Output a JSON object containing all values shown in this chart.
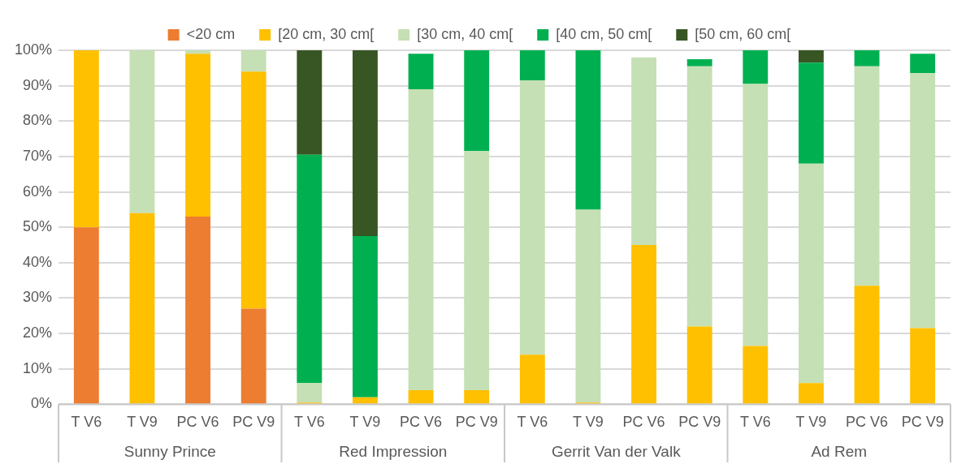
{
  "chart_data": {
    "type": "bar",
    "stacked": true,
    "categories": [
      "T V6",
      "T V9",
      "PC V6",
      "PC V9",
      "T V6",
      "T V9",
      "PC V6",
      "PC V9",
      "T V6",
      "T V9",
      "PC V6",
      "PC V9",
      "T V6",
      "T V9",
      "PC V6",
      "PC V9"
    ],
    "series": [
      {
        "name": "<20 cm",
        "color": "#ed7d31",
        "values": [
          50,
          0,
          53,
          27,
          0,
          0,
          0,
          0,
          0,
          0,
          0,
          0,
          0,
          0,
          0,
          0
        ]
      },
      {
        "name": "[20 cm, 30 cm[",
        "color": "#ffc000",
        "values": [
          50,
          54,
          46,
          67,
          0.5,
          2,
          4,
          4,
          14,
          0.5,
          45,
          22,
          16.5,
          6,
          33.5,
          21.5
        ]
      },
      {
        "name": "[30 cm, 40 cm[",
        "color": "#c5e0b4",
        "values": [
          0,
          46,
          1,
          6,
          5.5,
          0,
          85,
          67.5,
          77.5,
          54.5,
          53,
          73.5,
          74,
          62,
          62,
          72
        ]
      },
      {
        "name": "[40 cm, 50 cm[",
        "color": "#00b050",
        "values": [
          0,
          0,
          0,
          0,
          64.5,
          45.5,
          10,
          28.5,
          8.5,
          45,
          0,
          2,
          9.5,
          28.5,
          4.5,
          5.5
        ]
      },
      {
        "name": "[50 cm, 60 cm[",
        "color": "#375623",
        "values": [
          0,
          0,
          0,
          0,
          29.5,
          52.5,
          0,
          0,
          0,
          0,
          0,
          0,
          0,
          3.5,
          0,
          0
        ]
      }
    ],
    "ylim": [
      0,
      100
    ],
    "yticks": [
      {
        "value": 0,
        "label": "0%"
      },
      {
        "value": 10,
        "label": "10%"
      },
      {
        "value": 20,
        "label": "20%"
      },
      {
        "value": 30,
        "label": "30%"
      },
      {
        "value": 40,
        "label": "40%"
      },
      {
        "value": 50,
        "label": "50%"
      },
      {
        "value": 60,
        "label": "60%"
      },
      {
        "value": 70,
        "label": "70%"
      },
      {
        "value": 80,
        "label": "80%"
      },
      {
        "value": 90,
        "label": "90%"
      },
      {
        "value": 100,
        "label": "100%"
      }
    ],
    "annotations": [
      "Sunny Prince",
      "Red Impression",
      "Gerrit Van der Valk",
      "Ad Rem"
    ],
    "grid": "y",
    "legend": "top"
  }
}
